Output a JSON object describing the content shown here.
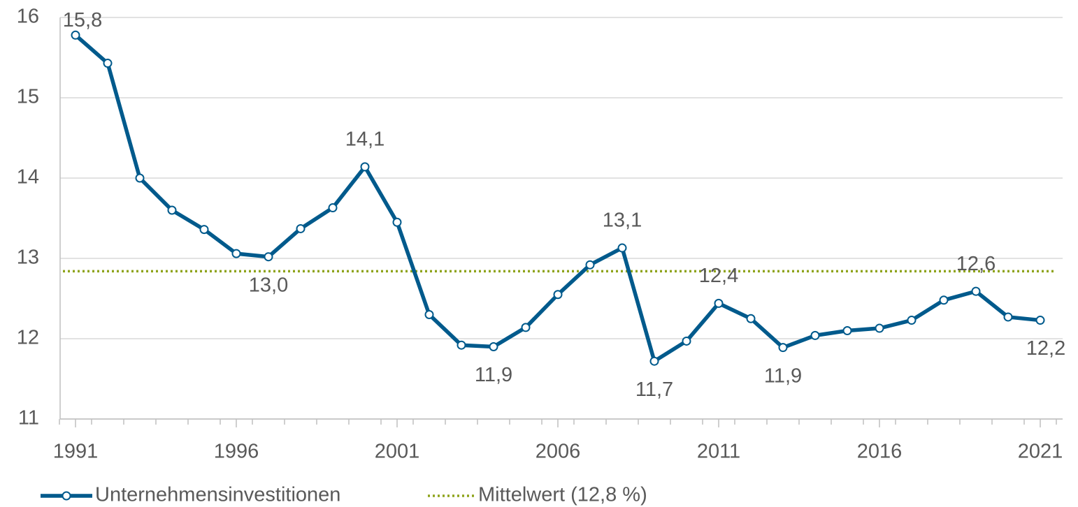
{
  "chart_data": {
    "type": "line",
    "x": [
      1991,
      1992,
      1993,
      1994,
      1995,
      1996,
      1997,
      1998,
      1999,
      2000,
      2001,
      2002,
      2003,
      2004,
      2005,
      2006,
      2007,
      2008,
      2009,
      2010,
      2011,
      2012,
      2013,
      2014,
      2015,
      2016,
      2017,
      2018,
      2019,
      2020,
      2021
    ],
    "xlim": [
      1990.5,
      2021.5
    ],
    "xticks": [
      1991,
      1996,
      2001,
      2006,
      2011,
      2016,
      2021
    ],
    "ylim": [
      11,
      16
    ],
    "yticks": [
      11,
      12,
      13,
      14,
      15,
      16
    ],
    "grid": true,
    "series": [
      {
        "name": "Unternehmensinvestitionen",
        "color": "#005a8c",
        "values": [
          15.78,
          15.43,
          14.0,
          13.6,
          13.36,
          13.06,
          13.02,
          13.37,
          13.63,
          14.14,
          13.45,
          12.3,
          11.92,
          11.9,
          12.14,
          12.55,
          12.92,
          13.13,
          11.72,
          11.97,
          12.44,
          12.25,
          11.89,
          12.04,
          12.1,
          12.13,
          12.23,
          12.48,
          12.59,
          12.27,
          12.23
        ],
        "value_labels": [
          "15,8",
          null,
          null,
          null,
          null,
          null,
          "13,0",
          null,
          null,
          "14,1",
          null,
          null,
          null,
          "11,9",
          null,
          null,
          null,
          "13,1",
          "11,7",
          null,
          "12,4",
          null,
          "11,9",
          null,
          null,
          null,
          null,
          null,
          "12,6",
          null,
          "12,2"
        ]
      }
    ],
    "reference_line": {
      "name": "Mittelwert (12,8 %)",
      "value": 12.84,
      "color": "#8ea31b"
    }
  }
}
